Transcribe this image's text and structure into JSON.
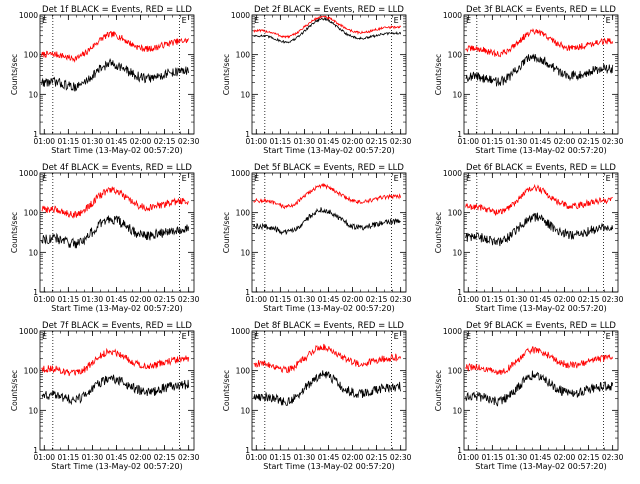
{
  "chart_data": [
    {
      "type": "line",
      "title": "Det 1f BLACK = Events, RED = LLD",
      "xlabel": "Start Time (13-May-02 00:57:20)",
      "ylabel": "Counts/sec",
      "x_ticks": [
        "01:00",
        "01:15",
        "01:30",
        "01:45",
        "02:00",
        "02:15",
        "02:30"
      ],
      "y_ticks": [
        "1",
        "10",
        "100",
        "1000"
      ],
      "ylim": [
        1,
        1000
      ],
      "y_scale": "log",
      "x_range_min": [
        0,
        96
      ],
      "dotted_vlines_min": [
        8,
        87
      ],
      "corner_markers": {
        "left": "E",
        "right": "E"
      },
      "series": [
        {
          "color": "#ff0000",
          "start": 100,
          "peak": 330,
          "end": 230,
          "noise": 0.08
        },
        {
          "color": "#000000",
          "start": 20,
          "peak": 60,
          "end": 40,
          "noise": 0.12
        }
      ]
    },
    {
      "type": "line",
      "title": "Det 2f BLACK = Events, RED = LLD",
      "xlabel": "Start Time (13-May-02 00:57:20)",
      "ylabel": "Counts/sec",
      "x_ticks": [
        "01:00",
        "01:15",
        "01:30",
        "01:45",
        "02:00",
        "02:15",
        "02:30"
      ],
      "y_ticks": [
        "1",
        "10",
        "100",
        "1000"
      ],
      "ylim": [
        1,
        1000
      ],
      "y_scale": "log",
      "x_range_min": [
        0,
        96
      ],
      "dotted_vlines_min": [
        8,
        87
      ],
      "corner_markers": {
        "left": "E",
        "right": "E"
      },
      "series": [
        {
          "color": "#ff0000",
          "start": 400,
          "peak": 900,
          "end": 500,
          "noise": 0.03
        },
        {
          "color": "#000000",
          "start": 300,
          "peak": 800,
          "end": 350,
          "noise": 0.03
        }
      ]
    },
    {
      "type": "line",
      "title": "Det 3f BLACK = Events, RED = LLD",
      "xlabel": "Start Time (13-May-02 00:57:20)",
      "ylabel": "Counts/sec",
      "x_ticks": [
        "01:00",
        "01:15",
        "01:30",
        "01:45",
        "02:00",
        "02:15",
        "02:30"
      ],
      "y_ticks": [
        "1",
        "10",
        "100",
        "1000"
      ],
      "ylim": [
        1,
        1000
      ],
      "y_scale": "log",
      "x_range_min": [
        0,
        96
      ],
      "dotted_vlines_min": [
        8,
        87
      ],
      "corner_markers": {
        "left": "E",
        "right": "E"
      },
      "series": [
        {
          "color": "#ff0000",
          "start": 140,
          "peak": 380,
          "end": 220,
          "noise": 0.08
        },
        {
          "color": "#000000",
          "start": 28,
          "peak": 90,
          "end": 45,
          "noise": 0.12
        }
      ]
    },
    {
      "type": "line",
      "title": "Det 4f BLACK = Events, RED = LLD",
      "xlabel": "Start Time (13-May-02 00:57:20)",
      "ylabel": "Counts/sec",
      "x_ticks": [
        "01:00",
        "01:15",
        "01:30",
        "01:45",
        "02:00",
        "02:15",
        "02:30"
      ],
      "y_ticks": [
        "1",
        "10",
        "100",
        "1000"
      ],
      "ylim": [
        1,
        1000
      ],
      "y_scale": "log",
      "x_range_min": [
        0,
        96
      ],
      "dotted_vlines_min": [
        8,
        87
      ],
      "corner_markers": {
        "left": "E",
        "right": "E"
      },
      "series": [
        {
          "color": "#ff0000",
          "start": 120,
          "peak": 380,
          "end": 200,
          "noise": 0.09
        },
        {
          "color": "#000000",
          "start": 22,
          "peak": 70,
          "end": 40,
          "noise": 0.13
        }
      ]
    },
    {
      "type": "line",
      "title": "Det 5f BLACK = Events, RED = LLD",
      "xlabel": "Start Time (13-May-02 00:57:20)",
      "ylabel": "Counts/sec",
      "x_ticks": [
        "01:00",
        "01:15",
        "01:30",
        "01:45",
        "02:00",
        "02:15",
        "02:30"
      ],
      "y_ticks": [
        "1",
        "10",
        "100",
        "1000"
      ],
      "ylim": [
        1,
        1000
      ],
      "y_scale": "log",
      "x_range_min": [
        0,
        96
      ],
      "dotted_vlines_min": [
        8,
        87
      ],
      "corner_markers": {
        "left": "E",
        "right": "E"
      },
      "series": [
        {
          "color": "#ff0000",
          "start": 200,
          "peak": 480,
          "end": 260,
          "noise": 0.05
        },
        {
          "color": "#000000",
          "start": 45,
          "peak": 120,
          "end": 60,
          "noise": 0.07
        }
      ]
    },
    {
      "type": "line",
      "title": "Det 6f BLACK = Events, RED = LLD",
      "xlabel": "Start Time (13-May-02 00:57:20)",
      "ylabel": "Counts/sec",
      "x_ticks": [
        "01:00",
        "01:15",
        "01:30",
        "01:45",
        "02:00",
        "02:15",
        "02:30"
      ],
      "y_ticks": [
        "1",
        "10",
        "100",
        "1000"
      ],
      "ylim": [
        1,
        1000
      ],
      "y_scale": "log",
      "x_range_min": [
        0,
        96
      ],
      "dotted_vlines_min": [
        8,
        87
      ],
      "corner_markers": {
        "left": "E",
        "right": "E"
      },
      "series": [
        {
          "color": "#ff0000",
          "start": 140,
          "peak": 420,
          "end": 210,
          "noise": 0.08
        },
        {
          "color": "#000000",
          "start": 24,
          "peak": 80,
          "end": 42,
          "noise": 0.12
        }
      ]
    },
    {
      "type": "line",
      "title": "Det 7f BLACK = Events, RED = LLD",
      "xlabel": "Start Time (13-May-02 00:57:20)",
      "ylabel": "Counts/sec",
      "x_ticks": [
        "01:00",
        "01:15",
        "01:30",
        "01:45",
        "02:00",
        "02:15",
        "02:30"
      ],
      "y_ticks": [
        "1",
        "10",
        "100",
        "1000"
      ],
      "ylim": [
        1,
        1000
      ],
      "y_scale": "log",
      "x_range_min": [
        0,
        96
      ],
      "dotted_vlines_min": [
        8,
        87
      ],
      "corner_markers": {
        "left": "E",
        "right": "E"
      },
      "series": [
        {
          "color": "#ff0000",
          "start": 110,
          "peak": 310,
          "end": 200,
          "noise": 0.09
        },
        {
          "color": "#000000",
          "start": 24,
          "peak": 65,
          "end": 45,
          "noise": 0.12
        }
      ]
    },
    {
      "type": "line",
      "title": "Det 8f BLACK = Events, RED = LLD",
      "xlabel": "Start Time (13-May-02 00:57:20)",
      "ylabel": "Counts/sec",
      "x_ticks": [
        "01:00",
        "01:15",
        "01:30",
        "01:45",
        "02:00",
        "02:15",
        "02:30"
      ],
      "y_ticks": [
        "1",
        "10",
        "100",
        "1000"
      ],
      "ylim": [
        1,
        1000
      ],
      "y_scale": "log",
      "x_range_min": [
        0,
        96
      ],
      "dotted_vlines_min": [
        8,
        87
      ],
      "corner_markers": {
        "left": "E",
        "right": "E"
      },
      "series": [
        {
          "color": "#ff0000",
          "start": 150,
          "peak": 400,
          "end": 220,
          "noise": 0.09
        },
        {
          "color": "#000000",
          "start": 22,
          "peak": 80,
          "end": 40,
          "noise": 0.12
        }
      ]
    },
    {
      "type": "line",
      "title": "Det 9f BLACK = Events, RED = LLD",
      "xlabel": "Start Time (13-May-02 00:57:20)",
      "ylabel": "Counts/sec",
      "x_ticks": [
        "01:00",
        "01:15",
        "01:30",
        "01:45",
        "02:00",
        "02:15",
        "02:30"
      ],
      "y_ticks": [
        "1",
        "10",
        "100",
        "1000"
      ],
      "ylim": [
        1,
        1000
      ],
      "y_scale": "log",
      "x_range_min": [
        0,
        96
      ],
      "dotted_vlines_min": [
        8,
        87
      ],
      "corner_markers": {
        "left": "E",
        "right": "E"
      },
      "series": [
        {
          "color": "#ff0000",
          "start": 120,
          "peak": 340,
          "end": 210,
          "noise": 0.09
        },
        {
          "color": "#000000",
          "start": 22,
          "peak": 80,
          "end": 42,
          "noise": 0.12
        }
      ]
    }
  ]
}
